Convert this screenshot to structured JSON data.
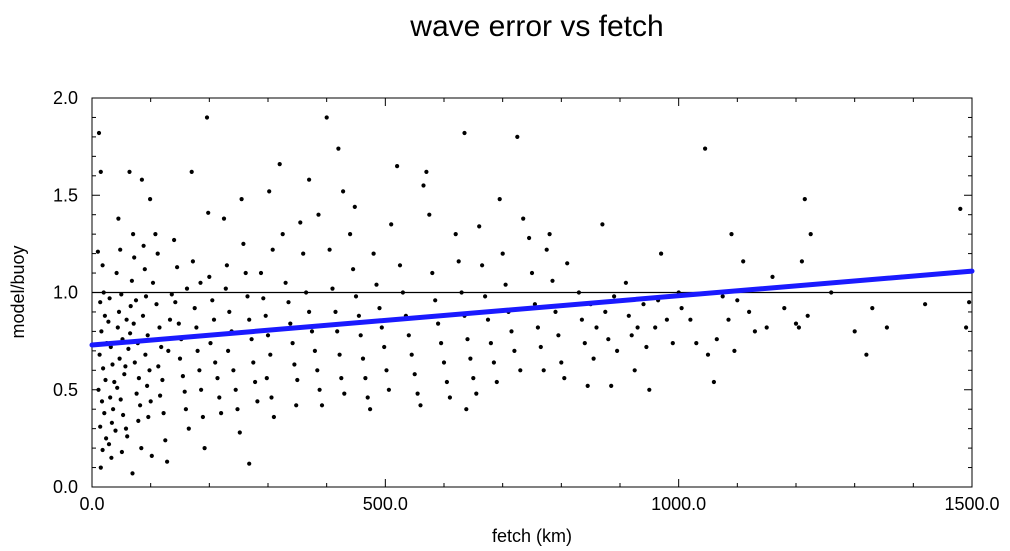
{
  "chart_data": {
    "type": "scatter",
    "title": "wave error vs fetch",
    "xlabel": "fetch (km)",
    "ylabel": "model/buoy",
    "xlim": [
      0,
      1500
    ],
    "ylim": [
      0,
      2.0
    ],
    "x_ticks": [
      {
        "value": 0,
        "label": "0.0"
      },
      {
        "value": 500,
        "label": "500.0"
      },
      {
        "value": 1000,
        "label": "1000.0"
      },
      {
        "value": 1500,
        "label": "1500.0"
      }
    ],
    "y_ticks": [
      {
        "value": 0,
        "label": "0.0"
      },
      {
        "value": 0.5,
        "label": "0.5"
      },
      {
        "value": 1.0,
        "label": "1.0"
      },
      {
        "value": 1.5,
        "label": "1.5"
      },
      {
        "value": 2.0,
        "label": "2.0"
      }
    ],
    "reference_line": {
      "y": 1.0,
      "color": "#000000"
    },
    "fit_line": {
      "x": [
        0,
        1500
      ],
      "y": [
        0.73,
        1.11
      ],
      "color": "#1a1aff"
    },
    "marker_color": "#000000",
    "points": [
      [
        12,
        1.82
      ],
      [
        15,
        1.62
      ],
      [
        10,
        1.21
      ],
      [
        18,
        1.14
      ],
      [
        20,
        1.0
      ],
      [
        14,
        0.95
      ],
      [
        22,
        0.88
      ],
      [
        16,
        0.8
      ],
      [
        25,
        0.74
      ],
      [
        13,
        0.68
      ],
      [
        19,
        0.61
      ],
      [
        23,
        0.55
      ],
      [
        11,
        0.5
      ],
      [
        17,
        0.44
      ],
      [
        21,
        0.38
      ],
      [
        14,
        0.31
      ],
      [
        24,
        0.25
      ],
      [
        18,
        0.19
      ],
      [
        15,
        0.1
      ],
      [
        28,
        0.85
      ],
      [
        30,
        0.97
      ],
      [
        32,
        0.72
      ],
      [
        35,
        0.63
      ],
      [
        38,
        0.54
      ],
      [
        31,
        0.46
      ],
      [
        36,
        0.4
      ],
      [
        34,
        0.33
      ],
      [
        29,
        0.22
      ],
      [
        40,
        0.29
      ],
      [
        33,
        0.15
      ],
      [
        45,
        1.38
      ],
      [
        48,
        1.22
      ],
      [
        42,
        1.1
      ],
      [
        50,
        0.99
      ],
      [
        46,
        0.9
      ],
      [
        44,
        0.82
      ],
      [
        52,
        0.76
      ],
      [
        47,
        0.66
      ],
      [
        55,
        0.58
      ],
      [
        43,
        0.51
      ],
      [
        49,
        0.45
      ],
      [
        53,
        0.37
      ],
      [
        58,
        0.3
      ],
      [
        51,
        0.18
      ],
      [
        60,
        0.26
      ],
      [
        57,
        0.62
      ],
      [
        62,
        0.71
      ],
      [
        65,
        0.79
      ],
      [
        59,
        0.86
      ],
      [
        66,
        0.93
      ],
      [
        64,
        1.62
      ],
      [
        70,
        1.3
      ],
      [
        72,
        1.18
      ],
      [
        68,
        1.06
      ],
      [
        75,
        0.96
      ],
      [
        71,
        0.84
      ],
      [
        78,
        0.74
      ],
      [
        73,
        0.64
      ],
      [
        80,
        0.56
      ],
      [
        76,
        0.48
      ],
      [
        82,
        0.42
      ],
      [
        79,
        0.34
      ],
      [
        84,
        0.2
      ],
      [
        69,
        0.07
      ],
      [
        85,
        1.58
      ],
      [
        88,
        1.24
      ],
      [
        90,
        1.12
      ],
      [
        92,
        0.98
      ],
      [
        87,
        0.88
      ],
      [
        95,
        0.78
      ],
      [
        91,
        0.68
      ],
      [
        98,
        0.6
      ],
      [
        94,
        0.52
      ],
      [
        100,
        0.44
      ],
      [
        96,
        0.36
      ],
      [
        102,
        0.16
      ],
      [
        99,
        1.48
      ],
      [
        104,
        1.05
      ],
      [
        108,
        1.3
      ],
      [
        112,
        1.2
      ],
      [
        110,
        0.94
      ],
      [
        115,
        0.82
      ],
      [
        118,
        0.72
      ],
      [
        113,
        0.62
      ],
      [
        120,
        0.55
      ],
      [
        116,
        0.47
      ],
      [
        122,
        0.38
      ],
      [
        125,
        0.24
      ],
      [
        128,
        0.13
      ],
      [
        130,
        0.7
      ],
      [
        133,
        0.86
      ],
      [
        136,
        0.99
      ],
      [
        140,
        1.27
      ],
      [
        145,
        1.13
      ],
      [
        142,
        0.95
      ],
      [
        148,
        0.84
      ],
      [
        152,
        0.76
      ],
      [
        150,
        0.66
      ],
      [
        155,
        0.57
      ],
      [
        158,
        0.49
      ],
      [
        160,
        0.4
      ],
      [
        165,
        0.3
      ],
      [
        162,
        1.02
      ],
      [
        170,
        1.62
      ],
      [
        172,
        1.16
      ],
      [
        175,
        0.92
      ],
      [
        178,
        0.82
      ],
      [
        180,
        0.7
      ],
      [
        183,
        0.6
      ],
      [
        186,
        0.5
      ],
      [
        189,
        0.36
      ],
      [
        192,
        0.2
      ],
      [
        185,
        1.05
      ],
      [
        196,
        1.9
      ],
      [
        198,
        1.41
      ],
      [
        200,
        1.08
      ],
      [
        205,
        0.96
      ],
      [
        208,
        0.86
      ],
      [
        202,
        0.74
      ],
      [
        210,
        0.64
      ],
      [
        214,
        0.56
      ],
      [
        217,
        0.46
      ],
      [
        220,
        0.38
      ],
      [
        225,
        1.38
      ],
      [
        230,
        1.14
      ],
      [
        228,
        1.02
      ],
      [
        234,
        0.9
      ],
      [
        238,
        0.8
      ],
      [
        232,
        0.7
      ],
      [
        241,
        0.6
      ],
      [
        245,
        0.5
      ],
      [
        248,
        0.4
      ],
      [
        252,
        0.28
      ],
      [
        255,
        1.48
      ],
      [
        258,
        1.25
      ],
      [
        262,
        1.1
      ],
      [
        265,
        0.98
      ],
      [
        268,
        0.86
      ],
      [
        272,
        0.76
      ],
      [
        275,
        0.64
      ],
      [
        278,
        0.54
      ],
      [
        282,
        0.44
      ],
      [
        268,
        0.12
      ],
      [
        288,
        1.1
      ],
      [
        292,
        0.97
      ],
      [
        296,
        0.88
      ],
      [
        300,
        0.78
      ],
      [
        304,
        0.68
      ],
      [
        298,
        0.56
      ],
      [
        306,
        0.46
      ],
      [
        310,
        0.36
      ],
      [
        302,
        1.52
      ],
      [
        308,
        1.22
      ],
      [
        320,
        1.66
      ],
      [
        325,
        1.3
      ],
      [
        330,
        1.05
      ],
      [
        335,
        0.95
      ],
      [
        338,
        0.84
      ],
      [
        342,
        0.74
      ],
      [
        345,
        0.63
      ],
      [
        350,
        0.55
      ],
      [
        348,
        0.42
      ],
      [
        355,
        1.36
      ],
      [
        360,
        1.2
      ],
      [
        365,
        1.0
      ],
      [
        370,
        0.9
      ],
      [
        375,
        0.8
      ],
      [
        380,
        0.7
      ],
      [
        384,
        0.6
      ],
      [
        388,
        0.5
      ],
      [
        392,
        0.42
      ],
      [
        370,
        1.58
      ],
      [
        386,
        1.4
      ],
      [
        400,
        1.9
      ],
      [
        405,
        1.22
      ],
      [
        410,
        1.02
      ],
      [
        415,
        0.9
      ],
      [
        418,
        0.8
      ],
      [
        422,
        0.68
      ],
      [
        425,
        0.56
      ],
      [
        430,
        0.48
      ],
      [
        428,
        1.52
      ],
      [
        420,
        1.74
      ],
      [
        440,
        1.3
      ],
      [
        445,
        1.12
      ],
      [
        450,
        0.98
      ],
      [
        455,
        0.88
      ],
      [
        458,
        0.78
      ],
      [
        462,
        0.66
      ],
      [
        466,
        0.56
      ],
      [
        470,
        0.46
      ],
      [
        448,
        1.44
      ],
      [
        474,
        0.4
      ],
      [
        480,
        1.2
      ],
      [
        485,
        1.04
      ],
      [
        490,
        0.92
      ],
      [
        494,
        0.82
      ],
      [
        498,
        0.72
      ],
      [
        502,
        0.6
      ],
      [
        506,
        0.5
      ],
      [
        510,
        1.35
      ],
      [
        520,
        1.65
      ],
      [
        525,
        1.14
      ],
      [
        530,
        1.0
      ],
      [
        535,
        0.88
      ],
      [
        540,
        0.78
      ],
      [
        545,
        0.68
      ],
      [
        550,
        0.58
      ],
      [
        555,
        0.48
      ],
      [
        560,
        0.42
      ],
      [
        565,
        1.55
      ],
      [
        570,
        1.62
      ],
      [
        575,
        1.4
      ],
      [
        580,
        1.1
      ],
      [
        585,
        0.96
      ],
      [
        590,
        0.84
      ],
      [
        595,
        0.74
      ],
      [
        600,
        0.64
      ],
      [
        605,
        0.54
      ],
      [
        610,
        0.46
      ],
      [
        620,
        1.3
      ],
      [
        625,
        1.16
      ],
      [
        630,
        1.0
      ],
      [
        635,
        0.88
      ],
      [
        640,
        0.76
      ],
      [
        645,
        0.66
      ],
      [
        650,
        0.56
      ],
      [
        638,
        0.4
      ],
      [
        655,
        0.48
      ],
      [
        635,
        1.82
      ],
      [
        660,
        1.34
      ],
      [
        665,
        1.14
      ],
      [
        670,
        0.98
      ],
      [
        675,
        0.86
      ],
      [
        680,
        0.74
      ],
      [
        685,
        0.64
      ],
      [
        690,
        0.54
      ],
      [
        695,
        1.48
      ],
      [
        700,
        1.2
      ],
      [
        705,
        1.04
      ],
      [
        710,
        0.9
      ],
      [
        715,
        0.8
      ],
      [
        720,
        0.7
      ],
      [
        725,
        1.8
      ],
      [
        730,
        0.6
      ],
      [
        735,
        1.38
      ],
      [
        745,
        1.28
      ],
      [
        750,
        1.1
      ],
      [
        755,
        0.94
      ],
      [
        760,
        0.82
      ],
      [
        765,
        0.72
      ],
      [
        770,
        0.6
      ],
      [
        775,
        1.22
      ],
      [
        780,
        1.3
      ],
      [
        785,
        1.06
      ],
      [
        790,
        0.9
      ],
      [
        795,
        0.78
      ],
      [
        800,
        0.64
      ],
      [
        805,
        0.56
      ],
      [
        810,
        1.15
      ],
      [
        830,
        1.0
      ],
      [
        835,
        0.86
      ],
      [
        840,
        0.74
      ],
      [
        845,
        0.52
      ],
      [
        850,
        0.94
      ],
      [
        855,
        0.66
      ],
      [
        860,
        0.82
      ],
      [
        870,
        1.35
      ],
      [
        875,
        0.9
      ],
      [
        880,
        0.76
      ],
      [
        885,
        0.52
      ],
      [
        890,
        0.98
      ],
      [
        895,
        0.7
      ],
      [
        910,
        1.05
      ],
      [
        915,
        0.88
      ],
      [
        920,
        0.78
      ],
      [
        925,
        0.6
      ],
      [
        930,
        0.82
      ],
      [
        940,
        0.94
      ],
      [
        945,
        0.72
      ],
      [
        950,
        0.5
      ],
      [
        960,
        0.82
      ],
      [
        965,
        0.96
      ],
      [
        970,
        1.2
      ],
      [
        980,
        0.86
      ],
      [
        990,
        0.74
      ],
      [
        1000,
        1.0
      ],
      [
        1005,
        0.92
      ],
      [
        1020,
        0.86
      ],
      [
        1030,
        0.74
      ],
      [
        1045,
        1.74
      ],
      [
        1050,
        0.68
      ],
      [
        1060,
        0.54
      ],
      [
        1065,
        0.76
      ],
      [
        1075,
        0.98
      ],
      [
        1085,
        0.86
      ],
      [
        1090,
        1.3
      ],
      [
        1095,
        0.7
      ],
      [
        1100,
        0.96
      ],
      [
        1110,
        1.16
      ],
      [
        1120,
        0.9
      ],
      [
        1130,
        0.8
      ],
      [
        1150,
        0.82
      ],
      [
        1160,
        1.08
      ],
      [
        1180,
        0.92
      ],
      [
        1200,
        0.84
      ],
      [
        1205,
        0.82
      ],
      [
        1210,
        1.16
      ],
      [
        1215,
        1.48
      ],
      [
        1220,
        0.88
      ],
      [
        1225,
        1.3
      ],
      [
        1260,
        1.0
      ],
      [
        1300,
        0.8
      ],
      [
        1320,
        0.68
      ],
      [
        1330,
        0.92
      ],
      [
        1355,
        0.82
      ],
      [
        1380,
        1.08
      ],
      [
        1420,
        0.94
      ],
      [
        1480,
        1.43
      ],
      [
        1490,
        0.82
      ],
      [
        1495,
        0.95
      ]
    ]
  }
}
